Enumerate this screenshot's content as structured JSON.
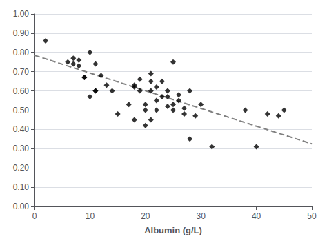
{
  "chart_data": {
    "type": "scatter",
    "xlabel": "Albumin (g/L)",
    "series": [
      {
        "type": "scatter",
        "color": "#000000",
        "marker": "diamond",
        "x": [
          2,
          6,
          7,
          7,
          8,
          8,
          9,
          9,
          10,
          10,
          11,
          11,
          11,
          12,
          13,
          14,
          15,
          17,
          18,
          18,
          18,
          19,
          19,
          20,
          20,
          20,
          21,
          21,
          21,
          21,
          22,
          22,
          22,
          23,
          23,
          24,
          24,
          24,
          25,
          25,
          25,
          26,
          26,
          27,
          27,
          28,
          28,
          29,
          30,
          32,
          38,
          40,
          42,
          44,
          45
        ],
        "values": [
          0.86,
          0.75,
          0.77,
          0.74,
          0.76,
          0.73,
          0.67,
          0.67,
          0.57,
          0.8,
          0.6,
          0.6,
          0.74,
          0.68,
          0.63,
          0.6,
          0.48,
          0.53,
          0.45,
          0.63,
          0.62,
          0.6,
          0.66,
          0.42,
          0.5,
          0.53,
          0.6,
          0.65,
          0.69,
          0.45,
          0.5,
          0.55,
          0.62,
          0.57,
          0.65,
          0.6,
          0.57,
          0.52,
          0.5,
          0.53,
          0.75,
          0.55,
          0.58,
          0.48,
          0.51,
          0.6,
          0.35,
          0.47,
          0.53,
          0.31,
          0.5,
          0.31,
          0.48,
          0.47,
          0.5
        ]
      },
      {
        "type": "line",
        "color": "#808080",
        "line_style": "dashed",
        "x": [
          0,
          50
        ],
        "values": [
          0.785,
          0.325
        ]
      }
    ],
    "xlim": [
      0,
      50
    ],
    "xticks": [
      0,
      10,
      20,
      30,
      40,
      50
    ],
    "ylim": [
      0.0,
      1.0
    ],
    "yticks": [
      {
        "value": 0.0,
        "label": "0.00"
      },
      {
        "value": 0.1,
        "label": "0.10"
      },
      {
        "value": 0.2,
        "label": "0.20"
      },
      {
        "value": 0.3,
        "label": "0.30"
      },
      {
        "value": 0.4,
        "label": "0.40"
      },
      {
        "value": 0.5,
        "label": "0.50"
      },
      {
        "value": 0.6,
        "label": "0.60"
      },
      {
        "value": 0.7,
        "label": "0.70"
      },
      {
        "value": 0.8,
        "label": "0.80"
      },
      {
        "value": 0.9,
        "label": "0.90"
      },
      {
        "value": 1.0,
        "label": "1.00"
      }
    ],
    "grid": "y"
  }
}
